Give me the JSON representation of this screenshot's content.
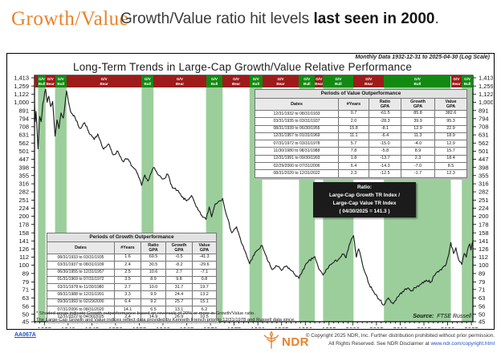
{
  "header": {
    "brand": "Growth/Value",
    "headline_regular": "Growth/Value ratio hit levels ",
    "headline_bold": "last seen in 2000",
    "headline_period": "."
  },
  "chart": {
    "note": "Monthly Data 1932-12-31 to 2025-04-30 (Log Scale)",
    "title": "Long-Term Trends in Large-Cap Growth/Value Relative Performance"
  },
  "chart_data": {
    "type": "line",
    "title": "Long-Term Trends in Large-Cap Growth/Value Relative Performance",
    "y_scale": "log",
    "x_range": [
      1932.92,
      2025.33
    ],
    "y_anchor": {
      "top_value": 1413,
      "bottom_value": 45
    },
    "x_tick_labels": [
      "1935",
      "1940",
      "1945",
      "1950",
      "1955",
      "1960",
      "1965",
      "1970",
      "1975",
      "1980",
      "1985",
      "1990",
      "1995",
      "2000",
      "2005",
      "2010",
      "2015",
      "2020",
      "2025"
    ],
    "y_tick_labels": [
      "1,413",
      "1,259",
      "1,122",
      "1,000",
      "891",
      "794",
      "708",
      "631",
      "562",
      "501",
      "447",
      "398",
      "355",
      "316",
      "282",
      "251",
      "224",
      "200",
      "178",
      "158",
      "141",
      "126",
      "112",
      "100",
      "89",
      "79",
      "71",
      "63",
      "56",
      "50",
      "45"
    ],
    "y_tick_values": [
      1413,
      1259,
      1122,
      1000,
      891,
      794,
      708,
      631,
      562,
      501,
      447,
      398,
      355,
      316,
      282,
      251,
      224,
      200,
      178,
      158,
      141,
      126,
      112,
      100,
      89,
      79,
      71,
      63,
      56,
      50,
      45
    ],
    "series": [
      {
        "name": "Large-Cap Growth TR Index / Large-Cap Value TR Index",
        "points": [
          [
            1932.92,
            1009
          ],
          [
            1933.08,
            760
          ],
          [
            1933.25,
            880
          ],
          [
            1933.42,
            700
          ],
          [
            1933.67,
            518
          ],
          [
            1934.0,
            820
          ],
          [
            1934.33,
            760
          ],
          [
            1934.67,
            980
          ],
          [
            1935.25,
            1206
          ],
          [
            1935.58,
            1000
          ],
          [
            1935.92,
            1090
          ],
          [
            1936.33,
            940
          ],
          [
            1936.75,
            1010
          ],
          [
            1937.25,
            620
          ],
          [
            1937.67,
            780
          ],
          [
            1938.08,
            690
          ],
          [
            1938.5,
            860
          ],
          [
            1939.0,
            800
          ],
          [
            1939.67,
            1175
          ],
          [
            1940.5,
            880
          ],
          [
            1941.5,
            800
          ],
          [
            1942.5,
            690
          ],
          [
            1943.5,
            750
          ],
          [
            1944.5,
            640
          ],
          [
            1945.5,
            590
          ],
          [
            1946.25,
            640
          ],
          [
            1947.5,
            515
          ],
          [
            1948.5,
            555
          ],
          [
            1949.5,
            475
          ],
          [
            1950.5,
            500
          ],
          [
            1951.5,
            435
          ],
          [
            1952.5,
            450
          ],
          [
            1953.5,
            405
          ],
          [
            1954.5,
            370
          ],
          [
            1955.5,
            309
          ],
          [
            1956.17,
            358
          ],
          [
            1956.83,
            328
          ],
          [
            1958.0,
            398
          ],
          [
            1959.0,
            358
          ],
          [
            1960.0,
            338
          ],
          [
            1961.0,
            362
          ],
          [
            1962.0,
            298
          ],
          [
            1963.0,
            288
          ],
          [
            1964.0,
            262
          ],
          [
            1965.0,
            248
          ],
          [
            1966.0,
            268
          ],
          [
            1967.0,
            228
          ],
          [
            1968.0,
            204
          ],
          [
            1969.08,
            191
          ],
          [
            1969.75,
            228
          ],
          [
            1970.25,
            198
          ],
          [
            1971.0,
            238
          ],
          [
            1972.58,
            257
          ],
          [
            1973.5,
            198
          ],
          [
            1974.5,
            158
          ],
          [
            1975.5,
            172
          ],
          [
            1976.5,
            138
          ],
          [
            1977.5,
            118
          ],
          [
            1978.25,
            102
          ],
          [
            1979.0,
            114
          ],
          [
            1980.0,
            124
          ],
          [
            1980.92,
            132
          ],
          [
            1982.0,
            108
          ],
          [
            1983.0,
            94
          ],
          [
            1984.0,
            99
          ],
          [
            1985.0,
            93
          ],
          [
            1986.0,
            99
          ],
          [
            1987.0,
            93
          ],
          [
            1988.67,
            83
          ],
          [
            1989.5,
            94
          ],
          [
            1990.5,
            104
          ],
          [
            1992.0,
            113
          ],
          [
            1992.83,
            95
          ],
          [
            1993.75,
            87
          ],
          [
            1995.0,
            99
          ],
          [
            1996.0,
            104
          ],
          [
            1997.0,
            109
          ],
          [
            1998.0,
            117
          ],
          [
            1998.58,
            111
          ],
          [
            1999.25,
            133
          ],
          [
            2000.17,
            152
          ],
          [
            2000.75,
            112
          ],
          [
            2001.25,
            126
          ],
          [
            2002.0,
            103
          ],
          [
            2002.75,
            88
          ],
          [
            2003.5,
            76
          ],
          [
            2004.5,
            68
          ],
          [
            2005.5,
            62
          ],
          [
            2006.58,
            57
          ],
          [
            2007.5,
            63
          ],
          [
            2008.5,
            58
          ],
          [
            2009.5,
            64
          ],
          [
            2010.5,
            69
          ],
          [
            2011.5,
            72
          ],
          [
            2012.5,
            70
          ],
          [
            2013.5,
            74
          ],
          [
            2014.5,
            77
          ],
          [
            2015.5,
            81
          ],
          [
            2016.5,
            79
          ],
          [
            2017.5,
            89
          ],
          [
            2018.5,
            94
          ],
          [
            2019.5,
            99
          ],
          [
            2020.2,
            115
          ],
          [
            2020.67,
            138
          ],
          [
            2021.25,
            118
          ],
          [
            2021.75,
            128
          ],
          [
            2022.33,
            108
          ],
          [
            2023.0,
            101
          ],
          [
            2023.5,
            118
          ],
          [
            2023.92,
            112
          ],
          [
            2024.33,
            128
          ],
          [
            2024.67,
            135
          ],
          [
            2024.92,
            124
          ],
          [
            2025.33,
            141.3
          ]
        ]
      }
    ],
    "regimes": [
      {
        "start": 1932.92,
        "end": 1933.67,
        "type": "bear",
        "l1": "G/V",
        "l2": "Bear"
      },
      {
        "start": 1933.67,
        "end": 1935.25,
        "type": "bull",
        "l1": "G/V",
        "l2": "Bull"
      },
      {
        "start": 1935.25,
        "end": 1937.25,
        "type": "bear",
        "l1": "G/V",
        "l2": "Bear"
      },
      {
        "start": 1937.25,
        "end": 1939.67,
        "type": "bull",
        "l1": "G/V",
        "l2": "Bull"
      },
      {
        "start": 1939.67,
        "end": 1955.5,
        "type": "bear",
        "l1": "G/V",
        "l2": "Bear"
      },
      {
        "start": 1955.5,
        "end": 1958.0,
        "type": "bull",
        "l1": "G/V",
        "l2": "Bull"
      },
      {
        "start": 1958.0,
        "end": 1969.08,
        "type": "bear",
        "l1": "G/V",
        "l2": "Bear"
      },
      {
        "start": 1969.08,
        "end": 1972.58,
        "type": "bull",
        "l1": "G/V",
        "l2": "Bull"
      },
      {
        "start": 1972.58,
        "end": 1978.25,
        "type": "bear",
        "l1": "G/V",
        "l2": "Bear"
      },
      {
        "start": 1978.25,
        "end": 1980.92,
        "type": "bull",
        "l1": "G/V",
        "l2": "Bull"
      },
      {
        "start": 1980.92,
        "end": 1988.67,
        "type": "bear",
        "l1": "G/V",
        "l2": "Bear"
      },
      {
        "start": 1988.67,
        "end": 1992.0,
        "type": "bull",
        "l1": "G/V",
        "l2": "Bull"
      },
      {
        "start": 1992.0,
        "end": 1993.75,
        "type": "bear",
        "l1": "G/V",
        "l2": "Bear"
      },
      {
        "start": 1993.75,
        "end": 2000.17,
        "type": "bull",
        "l1": "G/V",
        "l2": "Bull"
      },
      {
        "start": 2000.17,
        "end": 2006.58,
        "type": "bear",
        "l1": "G/V",
        "l2": "Bear"
      },
      {
        "start": 2006.58,
        "end": 2020.67,
        "type": "bull",
        "l1": "G/V",
        "l2": "Bull"
      },
      {
        "start": 2020.67,
        "end": 2023.0,
        "type": "bear",
        "l1": "G/V",
        "l2": "Bear"
      },
      {
        "start": 2023.0,
        "end": 2025.33,
        "type": "bull",
        "l1": "G/V",
        "l2": "Bull"
      }
    ]
  },
  "tables": {
    "value": {
      "title": "Periods of Value Outperformance",
      "columns": [
        "Dates",
        "#Years",
        "Ratio\nGPA",
        "Growth\nGPA",
        "Value\nGPA"
      ],
      "rows": [
        [
          "12/31/1932 to 08/31/1933",
          "0.7",
          "-61.5",
          "85.8",
          "382.6"
        ],
        [
          "03/31/1935 to 03/31/1937",
          "2.0",
          "-28.3",
          "39.9",
          "95.3"
        ],
        [
          "08/31/1939 to 06/30/1955",
          "15.8",
          "-8.1",
          "12.9",
          "22.9"
        ],
        [
          "12/31/1957 to 01/31/1969",
          "11.1",
          "-6.4",
          "11.3",
          "18.9"
        ],
        [
          "07/31/1972 to 03/31/1978",
          "5.7",
          "-15.0",
          "-4.0",
          "12.9"
        ],
        [
          "11/30/1980 to 08/31/1988",
          "7.8",
          "-5.8",
          "8.9",
          "15.7"
        ],
        [
          "12/31/1991 to 09/30/1993",
          "1.8",
          "-13.7",
          "2.3",
          "18.4"
        ],
        [
          "02/29/2000 to 07/31/2006",
          "6.4",
          "-14.3",
          "-7.0",
          "8.5"
        ],
        [
          "08/31/2020 to 12/31/2022",
          "2.3",
          "-12.5",
          "-1.7",
          "12.3"
        ]
      ]
    },
    "growth": {
      "title": "Periods of Growth Outperformance",
      "columns": [
        "Dates",
        "#Years",
        "Ratio\nGPA",
        "Growth\nGPA",
        "Value\nGPA"
      ],
      "rows": [
        [
          "08/31/1933 to 03/31/1935",
          "1.6",
          "69.5",
          "-0.5",
          "-41.3"
        ],
        [
          "03/31/1937 to 08/31/1939",
          "2.4",
          "30.5",
          "-8.2",
          "-29.6"
        ],
        [
          "06/30/1955 to 12/31/1957",
          "2.5",
          "10.6",
          "2.7",
          "-7.1"
        ],
        [
          "01/31/1969 to 07/31/1972",
          "3.5",
          "8.9",
          "9.8",
          "0.8"
        ],
        [
          "03/31/1978 to 11/30/1980",
          "2.7",
          "10.0",
          "31.7",
          "19.7"
        ],
        [
          "08/31/1988 to 12/31/1991",
          "3.3",
          "9.9",
          "24.4",
          "13.2"
        ],
        [
          "09/30/1993 to 02/29/2000",
          "6.4",
          "9.2",
          "25.7",
          "15.1"
        ],
        [
          "07/31/2006 to 08/31/2020",
          "14.1",
          "6.5",
          "13.1",
          "6.2"
        ],
        [
          "12/31/2022 to 04/30/2025",
          "2.4",
          "14.9",
          "26.9",
          "10.5"
        ]
      ]
    }
  },
  "annotation": {
    "line1": "Ratio:",
    "line2": "Large-Cap Growth TR Index /",
    "line3": "Large-Cap Value TR Index",
    "line4": "( 04/30/2025 = 141.3 )"
  },
  "footnotes": {
    "line1": "* Shaded areas indicate Growth outperformance based on reversals of 20% or more in Growth/Value ratio.",
    "line2": "The Large-Cap Growth and Value indices reflect data provided by Kenneth French prior to 12/31/1978 and Russell data since."
  },
  "source": {
    "label": "Source:",
    "value": "  FTSE Russell"
  },
  "footer": {
    "code": "AA067A",
    "logo_text": "NDR",
    "copyright_line1": "© Copyright 2025 NDR, Inc. Further distribution prohibited without prior permission.",
    "copyright_line2_prefix": "All Rights Reserved. See NDR Disclaimer at ",
    "copyright_link": "www.ndr.com/copyright.html"
  },
  "colors": {
    "brand_orange": "#E8822C",
    "bear_red": "#9E1B1B",
    "bull_green": "#128A12",
    "band_light_green": "#9CCE9C",
    "line_black": "#1A1A1A",
    "link_blue": "#1A4FC4"
  }
}
